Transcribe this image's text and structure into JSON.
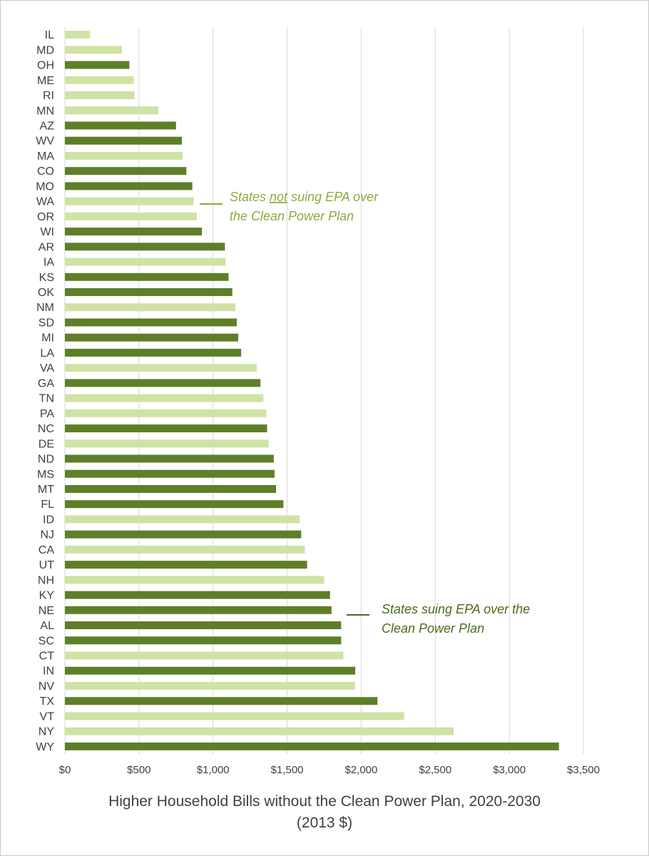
{
  "chart_data": {
    "type": "bar",
    "orientation": "horizontal",
    "title": "Higher Household Bills without the Clean Power Plan, 2020-2030",
    "subtitle": "(2013 $)",
    "xlim": [
      0,
      3500
    ],
    "x_ticks": [
      0,
      500,
      1000,
      1500,
      2000,
      2500,
      3000,
      3500
    ],
    "x_tick_labels": [
      "$0",
      "$500",
      "$1,000",
      "$1,500",
      "$2,000",
      "$2,500",
      "$3,000",
      "$3,500"
    ],
    "grid": true,
    "colors": {
      "suing": "#5e7f28",
      "not_suing": "#cfe3a5"
    },
    "legend": [
      {
        "key": "not_suing",
        "label_line1_pre": "States ",
        "label_line1_underlined": "not",
        "label_line1_post": " suing EPA over",
        "label_line2": "the Clean Power Plan",
        "color": "#8aac3e"
      },
      {
        "key": "suing",
        "label_line1": "States suing EPA over the",
        "label_line2": "Clean Power Plan",
        "color": "#4d6b1e"
      }
    ],
    "bars": [
      {
        "state": "IL",
        "value": 170,
        "group": "not_suing"
      },
      {
        "state": "MD",
        "value": 385,
        "group": "not_suing"
      },
      {
        "state": "OH",
        "value": 435,
        "group": "suing"
      },
      {
        "state": "ME",
        "value": 465,
        "group": "not_suing"
      },
      {
        "state": "RI",
        "value": 470,
        "group": "not_suing"
      },
      {
        "state": "MN",
        "value": 630,
        "group": "not_suing"
      },
      {
        "state": "AZ",
        "value": 750,
        "group": "suing"
      },
      {
        "state": "WV",
        "value": 790,
        "group": "suing"
      },
      {
        "state": "MA",
        "value": 795,
        "group": "not_suing"
      },
      {
        "state": "CO",
        "value": 820,
        "group": "suing"
      },
      {
        "state": "MO",
        "value": 860,
        "group": "suing"
      },
      {
        "state": "WA",
        "value": 870,
        "group": "not_suing"
      },
      {
        "state": "OR",
        "value": 890,
        "group": "not_suing"
      },
      {
        "state": "WI",
        "value": 925,
        "group": "suing"
      },
      {
        "state": "AR",
        "value": 1080,
        "group": "suing"
      },
      {
        "state": "IA",
        "value": 1085,
        "group": "not_suing"
      },
      {
        "state": "KS",
        "value": 1105,
        "group": "suing"
      },
      {
        "state": "OK",
        "value": 1130,
        "group": "suing"
      },
      {
        "state": "NM",
        "value": 1150,
        "group": "not_suing"
      },
      {
        "state": "SD",
        "value": 1160,
        "group": "suing"
      },
      {
        "state": "MI",
        "value": 1170,
        "group": "suing"
      },
      {
        "state": "LA",
        "value": 1190,
        "group": "suing"
      },
      {
        "state": "VA",
        "value": 1295,
        "group": "not_suing"
      },
      {
        "state": "GA",
        "value": 1320,
        "group": "suing"
      },
      {
        "state": "TN",
        "value": 1340,
        "group": "not_suing"
      },
      {
        "state": "PA",
        "value": 1360,
        "group": "not_suing"
      },
      {
        "state": "NC",
        "value": 1365,
        "group": "suing"
      },
      {
        "state": "DE",
        "value": 1375,
        "group": "not_suing"
      },
      {
        "state": "ND",
        "value": 1410,
        "group": "suing"
      },
      {
        "state": "MS",
        "value": 1415,
        "group": "suing"
      },
      {
        "state": "MT",
        "value": 1425,
        "group": "suing"
      },
      {
        "state": "FL",
        "value": 1475,
        "group": "suing"
      },
      {
        "state": "ID",
        "value": 1585,
        "group": "not_suing"
      },
      {
        "state": "NJ",
        "value": 1595,
        "group": "suing"
      },
      {
        "state": "CA",
        "value": 1620,
        "group": "not_suing"
      },
      {
        "state": "UT",
        "value": 1635,
        "group": "suing"
      },
      {
        "state": "NH",
        "value": 1750,
        "group": "not_suing"
      },
      {
        "state": "KY",
        "value": 1790,
        "group": "suing"
      },
      {
        "state": "NE",
        "value": 1800,
        "group": "suing"
      },
      {
        "state": "AL",
        "value": 1865,
        "group": "suing"
      },
      {
        "state": "SC",
        "value": 1865,
        "group": "suing"
      },
      {
        "state": "CT",
        "value": 1880,
        "group": "not_suing"
      },
      {
        "state": "IN",
        "value": 1960,
        "group": "suing"
      },
      {
        "state": "NV",
        "value": 1960,
        "group": "not_suing"
      },
      {
        "state": "TX",
        "value": 2110,
        "group": "suing"
      },
      {
        "state": "VT",
        "value": 2290,
        "group": "not_suing"
      },
      {
        "state": "NY",
        "value": 2625,
        "group": "not_suing"
      },
      {
        "state": "WY",
        "value": 3335,
        "group": "suing"
      }
    ]
  }
}
